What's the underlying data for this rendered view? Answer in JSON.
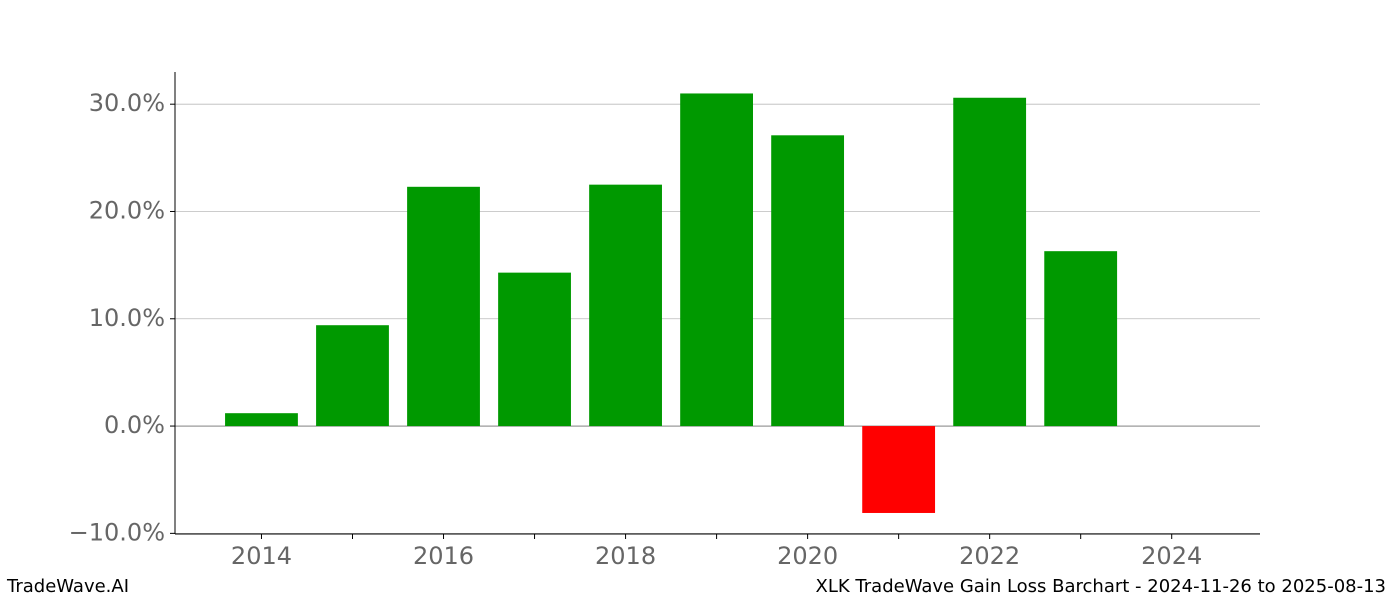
{
  "chart_data": {
    "type": "bar",
    "x": [
      2014,
      2015,
      2016,
      2017,
      2018,
      2019,
      2020,
      2021,
      2022,
      2023
    ],
    "values": [
      1.2,
      9.4,
      22.3,
      14.3,
      22.5,
      31.0,
      27.1,
      -8.1,
      30.6,
      16.3
    ],
    "colors": [
      "#009900",
      "#009900",
      "#009900",
      "#009900",
      "#009900",
      "#009900",
      "#009900",
      "#ff0000",
      "#009900",
      "#009900"
    ],
    "xlim": [
      2013.05,
      2024.97
    ],
    "xticks": [
      2014,
      2016,
      2018,
      2020,
      2022,
      2024
    ],
    "xminor_ticks": [
      2015,
      2017,
      2019,
      2021,
      2023
    ],
    "ylim": [
      -10.06,
      33.0
    ],
    "yticks": [
      {
        "value": -10,
        "label": "−10.0%"
      },
      {
        "value": 0,
        "label": "0.0%"
      },
      {
        "value": 10,
        "label": "10.0%"
      },
      {
        "value": 20,
        "label": "20.0%"
      },
      {
        "value": 30,
        "label": "30.0%"
      }
    ],
    "grid": true,
    "footer_left": "TradeWave.AI",
    "footer_right": "XLK TradeWave Gain Loss Barchart - 2024-11-26 to 2025-08-13"
  }
}
